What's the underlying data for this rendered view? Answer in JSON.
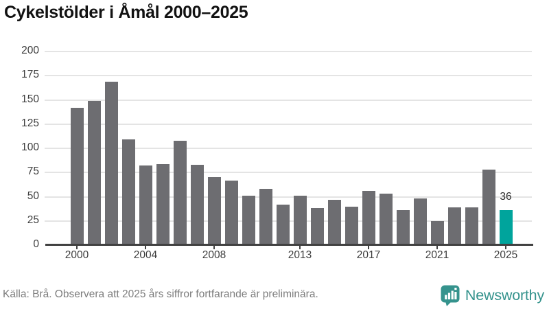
{
  "page": {
    "title": "Cykelstölder i Åmål 2000–2025",
    "footer": {
      "source_note": "Källa: Brå. Observera att 2025 års siffror fortfarande är preliminära."
    },
    "branding": {
      "logo_text": "Newsworthy",
      "logo_icon": "newsworthy-speech-bubble-bar-chart-icon",
      "logo_color": "#35938d"
    }
  },
  "chart_data": {
    "type": "bar",
    "title": "Cykelstölder i Åmål 2000–2025",
    "categories": [
      2000,
      2001,
      2002,
      2003,
      2004,
      2005,
      2006,
      2007,
      2008,
      2009,
      2010,
      2011,
      2012,
      2013,
      2014,
      2015,
      2016,
      2017,
      2018,
      2019,
      2020,
      2021,
      2022,
      2023,
      2024,
      2025
    ],
    "values": [
      142,
      149,
      169,
      109,
      82,
      84,
      108,
      83,
      70,
      67,
      51,
      58,
      42,
      51,
      38,
      47,
      40,
      56,
      53,
      36,
      48,
      25,
      39,
      39,
      78,
      36
    ],
    "highlight": {
      "category": 2025,
      "value": 36,
      "label": "36",
      "color": "#00a49c"
    },
    "bar_color": "#6d6d71",
    "xlabel": "",
    "ylabel": "",
    "ylim": [
      0,
      200
    ],
    "yticks": [
      0,
      25,
      50,
      75,
      100,
      125,
      150,
      175,
      200
    ],
    "xticks": [
      2000,
      2004,
      2008,
      2013,
      2017,
      2021,
      2025
    ],
    "grid": "horizontal-only",
    "grid_color": "#e4e4e4",
    "axis_color": "#414141",
    "legend": "none"
  }
}
